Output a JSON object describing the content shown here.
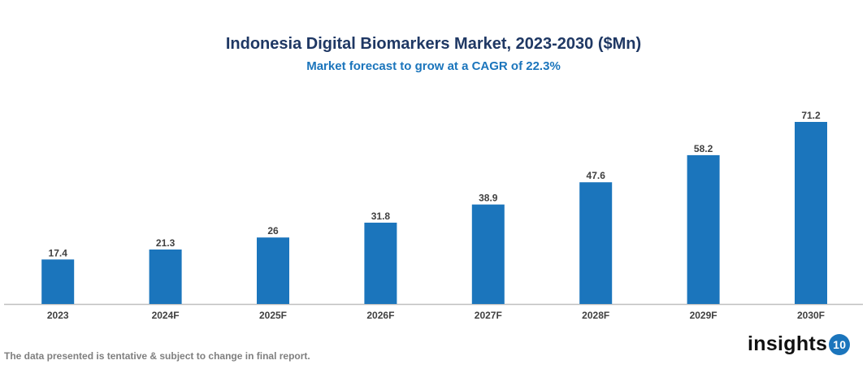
{
  "chart_data": {
    "type": "bar",
    "title": "Indonesia Digital Biomarkers Market, 2023-2030 ($Mn)",
    "subtitle": "Market forecast to grow at a CAGR of 22.3%",
    "categories": [
      "2023",
      "2024F",
      "2025F",
      "2026F",
      "2027F",
      "2028F",
      "2029F",
      "2030F"
    ],
    "values": [
      17.4,
      21.3,
      26,
      31.8,
      38.9,
      47.6,
      58.2,
      71.2
    ],
    "xlabel": "",
    "ylabel": "",
    "grid": false,
    "legend": "none",
    "bar_color": "#1b75bc"
  },
  "footnote": "The data presented is tentative & subject to change in final report.",
  "logo": {
    "text": "insights",
    "badge": "10"
  }
}
